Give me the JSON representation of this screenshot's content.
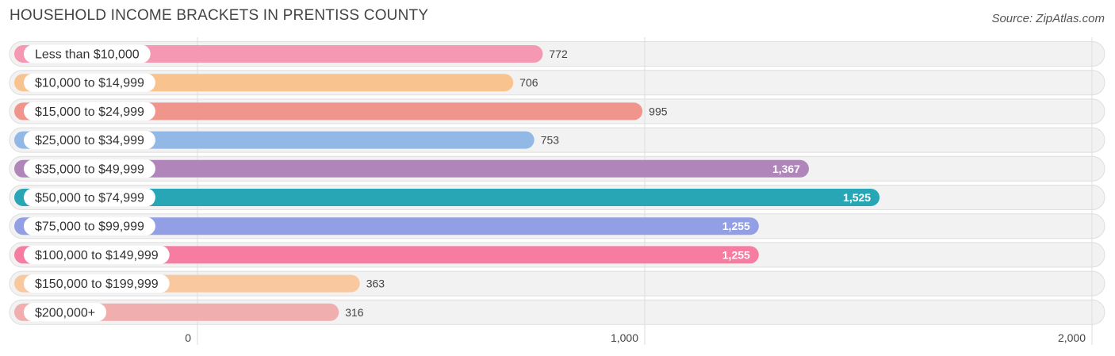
{
  "header": {
    "title": "HOUSEHOLD INCOME BRACKETS IN PRENTISS COUNTY",
    "source": "Source: ZipAtlas.com"
  },
  "chart_data": {
    "type": "bar",
    "orientation": "horizontal",
    "title": "HOUSEHOLD INCOME BRACKETS IN PRENTISS COUNTY",
    "xlim": [
      0,
      2000
    ],
    "x_ticks": [
      0,
      1000,
      2000
    ],
    "x_tick_labels": [
      "0",
      "1,000",
      "2,000"
    ],
    "grid": true,
    "categories": [
      "Less than $10,000",
      "$10,000 to $14,999",
      "$15,000 to $24,999",
      "$25,000 to $34,999",
      "$35,000 to $49,999",
      "$50,000 to $74,999",
      "$75,000 to $99,999",
      "$100,000 to $149,999",
      "$150,000 to $199,999",
      "$200,000+"
    ],
    "values": [
      772,
      706,
      995,
      753,
      1367,
      1525,
      1255,
      1255,
      363,
      316
    ],
    "value_labels": [
      "772",
      "706",
      "995",
      "753",
      "1,367",
      "1,525",
      "1,255",
      "1,255",
      "363",
      "316"
    ],
    "colors": [
      "#f598b4",
      "#f9c38f",
      "#ef958c",
      "#92b8e6",
      "#b085ba",
      "#29a6b5",
      "#939fe4",
      "#f67ca1",
      "#f9c89e",
      "#f1aeae"
    ]
  }
}
